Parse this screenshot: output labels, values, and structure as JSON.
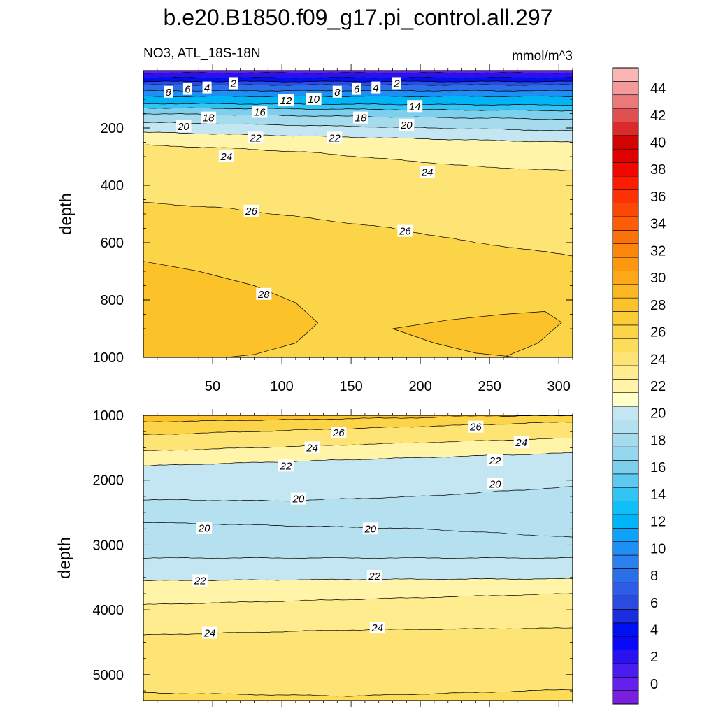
{
  "title": "b.e20.B1850.f09_g17.pi_control.all.297",
  "chart_data": [
    {
      "type": "heatmap",
      "panel": "upper",
      "subtitle_left": "NO3, ATL_18S-18N",
      "subtitle_right": "mmol/m^3",
      "ylabel": "depth",
      "xlim": [
        0,
        310
      ],
      "ylim": [
        1000,
        0
      ],
      "x_ticks": [
        50,
        100,
        150,
        200,
        250,
        300
      ],
      "y_ticks": [
        200,
        400,
        600,
        800,
        1000
      ],
      "contours": [
        {
          "level": 2,
          "x": [
            0,
            310
          ],
          "depth": [
            8,
            8
          ]
        },
        {
          "level": 4,
          "x": [
            0,
            310
          ],
          "depth": [
            25,
            25
          ]
        },
        {
          "level": 6,
          "x": [
            0,
            310
          ],
          "depth": [
            38,
            38
          ]
        },
        {
          "level": 8,
          "x": [
            0,
            310
          ],
          "depth": [
            50,
            50
          ]
        },
        {
          "level": 10,
          "x": [
            0,
            310
          ],
          "depth": [
            70,
            70
          ]
        },
        {
          "level": 12,
          "x": [
            0,
            310
          ],
          "depth": [
            90,
            90
          ]
        },
        {
          "level": 14,
          "x": [
            0,
            310
          ],
          "depth": [
            115,
            120
          ]
        },
        {
          "level": 16,
          "x": [
            0,
            310
          ],
          "depth": [
            130,
            140
          ]
        },
        {
          "level": 18,
          "x": [
            0,
            310
          ],
          "depth": [
            150,
            170
          ]
        },
        {
          "level": 20,
          "x": [
            0,
            310
          ],
          "depth": [
            180,
            210
          ]
        },
        {
          "level": 22,
          "x": [
            0,
            310
          ],
          "depth": [
            215,
            250
          ]
        },
        {
          "level": 24,
          "x": [
            0,
            60,
            120,
            180,
            240,
            310
          ],
          "depth": [
            260,
            270,
            285,
            310,
            335,
            350
          ]
        },
        {
          "level": 26,
          "x": [
            0,
            60,
            120,
            180,
            240,
            310
          ],
          "depth": [
            460,
            480,
            515,
            550,
            600,
            645
          ]
        },
        {
          "level": 28,
          "x": [
            0,
            40,
            80,
            110,
            126,
            110,
            80,
            60,
            0
          ],
          "depth": [
            665,
            700,
            750,
            810,
            880,
            950,
            990,
            1000,
            1000
          ]
        },
        {
          "level": 28,
          "x": [
            270,
            240,
            210,
            180,
            220,
            260,
            290,
            302,
            285,
            260
          ],
          "depth": [
            1000,
            985,
            950,
            900,
            870,
            850,
            840,
            878,
            950,
            1000
          ]
        }
      ],
      "contour_labels": [
        {
          "value": "2",
          "x": 65,
          "depth": 45
        },
        {
          "value": "4",
          "x": 46,
          "depth": 60
        },
        {
          "value": "6",
          "x": 32,
          "depth": 65
        },
        {
          "value": "8",
          "x": 18,
          "depth": 75
        },
        {
          "value": "2",
          "x": 183,
          "depth": 45
        },
        {
          "value": "4",
          "x": 168,
          "depth": 60
        },
        {
          "value": "6",
          "x": 154,
          "depth": 65
        },
        {
          "value": "8",
          "x": 140,
          "depth": 75
        },
        {
          "value": "10",
          "x": 123,
          "depth": 100
        },
        {
          "value": "12",
          "x": 103,
          "depth": 105
        },
        {
          "value": "14",
          "x": 196,
          "depth": 125
        },
        {
          "value": "16",
          "x": 84,
          "depth": 145
        },
        {
          "value": "18",
          "x": 47,
          "depth": 165
        },
        {
          "value": "18",
          "x": 157,
          "depth": 165
        },
        {
          "value": "20",
          "x": 29,
          "depth": 195
        },
        {
          "value": "20",
          "x": 190,
          "depth": 190
        },
        {
          "value": "22",
          "x": 81,
          "depth": 235
        },
        {
          "value": "22",
          "x": 138,
          "depth": 235
        },
        {
          "value": "24",
          "x": 60,
          "depth": 300
        },
        {
          "value": "24",
          "x": 205,
          "depth": 355
        },
        {
          "value": "26",
          "x": 78,
          "depth": 490
        },
        {
          "value": "26",
          "x": 189,
          "depth": 560
        },
        {
          "value": "28",
          "x": 87,
          "depth": 780
        }
      ]
    },
    {
      "type": "heatmap",
      "panel": "lower",
      "ylabel": "depth",
      "xlim": [
        0,
        310
      ],
      "ylim": [
        5400,
        1000
      ],
      "y_ticks": [
        1000,
        2000,
        3000,
        4000,
        5000
      ],
      "contours": [
        {
          "level": 28,
          "x": [
            0,
            310
          ],
          "depth": [
            1100,
            1000
          ]
        },
        {
          "level": 26,
          "x": [
            0,
            310
          ],
          "depth": [
            1300,
            1100
          ]
        },
        {
          "level": 24,
          "x": [
            0,
            310
          ],
          "depth": [
            1550,
            1350
          ]
        },
        {
          "level": 22,
          "x": [
            0,
            310
          ],
          "depth": [
            1780,
            1580
          ]
        },
        {
          "level": 20,
          "x": [
            0,
            100,
            200,
            310
          ],
          "depth": [
            2300,
            2320,
            2250,
            2100
          ]
        },
        {
          "level": 20,
          "x": [
            0,
            100,
            200,
            310
          ],
          "depth": [
            2650,
            2700,
            2750,
            2880
          ]
        },
        {
          "level": 20,
          "x": [
            0,
            310
          ],
          "depth": [
            3200,
            3200
          ]
        },
        {
          "level": 22,
          "x": [
            0,
            150,
            310
          ],
          "depth": [
            3550,
            3530,
            3520
          ]
        },
        {
          "level": 24,
          "x": [
            0,
            310
          ],
          "depth": [
            3920,
            3750
          ]
        },
        {
          "level": 24,
          "x": [
            0,
            150,
            310
          ],
          "depth": [
            4390,
            4310,
            4280
          ]
        },
        {
          "level": 26,
          "x": [
            0,
            150,
            310
          ],
          "depth": [
            5280,
            5330,
            5230
          ]
        }
      ],
      "contour_labels": [
        {
          "value": "26",
          "x": 141,
          "depth": 1270
        },
        {
          "value": "26",
          "x": 240,
          "depth": 1180
        },
        {
          "value": "24",
          "x": 122,
          "depth": 1500
        },
        {
          "value": "24",
          "x": 273,
          "depth": 1420
        },
        {
          "value": "22",
          "x": 103,
          "depth": 1780
        },
        {
          "value": "22",
          "x": 254,
          "depth": 1700
        },
        {
          "value": "20",
          "x": 254,
          "depth": 2060
        },
        {
          "value": "20",
          "x": 112,
          "depth": 2290
        },
        {
          "value": "20",
          "x": 44,
          "depth": 2740
        },
        {
          "value": "20",
          "x": 164,
          "depth": 2750
        },
        {
          "value": "22",
          "x": 41,
          "depth": 3550
        },
        {
          "value": "22",
          "x": 167,
          "depth": 3480
        },
        {
          "value": "24",
          "x": 48,
          "depth": 4360
        },
        {
          "value": "24",
          "x": 169,
          "depth": 4280
        }
      ]
    }
  ],
  "colorbar": {
    "labels": [
      "0",
      "2",
      "4",
      "6",
      "8",
      "10",
      "12",
      "14",
      "16",
      "18",
      "20",
      "22",
      "24",
      "26",
      "28",
      "30",
      "32",
      "34",
      "36",
      "38",
      "40",
      "42",
      "44"
    ],
    "label_values": [
      0,
      2,
      4,
      6,
      8,
      10,
      12,
      14,
      16,
      18,
      20,
      22,
      24,
      26,
      28,
      30,
      32,
      34,
      36,
      38,
      40,
      42,
      44
    ],
    "boundaries": [
      -1,
      0,
      1,
      2,
      3,
      4,
      5,
      6,
      7,
      8,
      9,
      10,
      11,
      12,
      13,
      14,
      15,
      16,
      17,
      18,
      19,
      20,
      21,
      22,
      23,
      24,
      25,
      26,
      27,
      28,
      29,
      30,
      31,
      32,
      33,
      34,
      35,
      36,
      37,
      38,
      39,
      40,
      41,
      42,
      43,
      44,
      45,
      46
    ],
    "colors": [
      "#7a1fe0",
      "#6520f0",
      "#4a1cf0",
      "#2a12f0",
      "#0a08f8",
      "#0010f0",
      "#1a2ee0",
      "#2a4ae0",
      "#2e5ce6",
      "#2a6ee8",
      "#2a80ee",
      "#1e90f5",
      "#10a2f8",
      "#00b4f8",
      "#10bef8",
      "#34c4f4",
      "#5ccaf0",
      "#7cd0ee",
      "#96d6ee",
      "#a6dbee",
      "#b4e0ef",
      "#c4e6f2",
      "#ffffc8",
      "#fff4a8",
      "#ffec8e",
      "#fde474",
      "#fcdc58",
      "#fbd448",
      "#fccc38",
      "#fcc22a",
      "#fcb822",
      "#fca818",
      "#fc9810",
      "#fc860c",
      "#fc720a",
      "#fc5e08",
      "#fc4806",
      "#fc3204",
      "#fc1c02",
      "#f00800",
      "#e00000",
      "#d40400",
      "#da2a2a",
      "#e05050",
      "#ea7a7a",
      "#f49a9a",
      "#fab6b6"
    ]
  }
}
